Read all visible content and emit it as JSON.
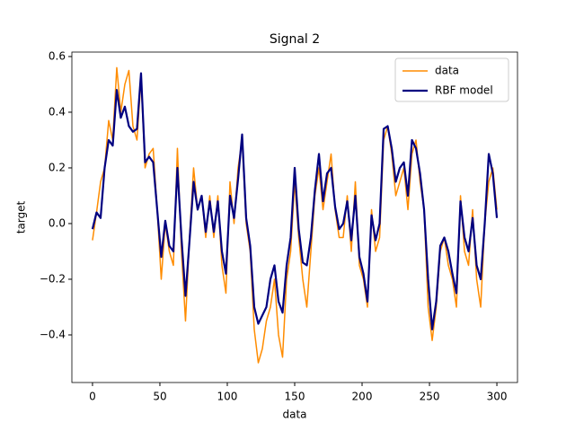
{
  "chart_data": {
    "type": "line",
    "title": "Signal 2",
    "x_label": "data",
    "y_label": "target",
    "x": [
      0,
      3,
      6,
      9,
      12,
      15,
      18,
      21,
      24,
      27,
      30,
      33,
      36,
      39,
      42,
      45,
      48,
      51,
      54,
      57,
      60,
      63,
      66,
      69,
      72,
      75,
      78,
      81,
      84,
      87,
      90,
      93,
      96,
      99,
      102,
      105,
      108,
      111,
      114,
      117,
      120,
      123,
      126,
      129,
      132,
      135,
      138,
      141,
      144,
      147,
      150,
      153,
      156,
      159,
      162,
      165,
      168,
      171,
      174,
      177,
      180,
      183,
      186,
      189,
      192,
      195,
      198,
      201,
      204,
      207,
      210,
      213,
      216,
      219,
      222,
      225,
      228,
      231,
      234,
      237,
      240,
      243,
      246,
      249,
      252,
      255,
      258,
      261,
      264,
      267,
      270,
      273,
      276,
      279,
      282,
      285,
      288,
      291,
      294,
      297,
      300
    ],
    "series": [
      {
        "name": "data",
        "color": "#ff8c00",
        "width": 1.5,
        "values": [
          -0.06,
          0.04,
          0.15,
          0.2,
          0.37,
          0.3,
          0.56,
          0.4,
          0.5,
          0.55,
          0.35,
          0.3,
          0.52,
          0.2,
          0.25,
          0.27,
          0.05,
          -0.2,
          0.0,
          -0.1,
          -0.15,
          0.27,
          -0.1,
          -0.35,
          -0.05,
          0.2,
          0.05,
          0.1,
          -0.05,
          0.1,
          -0.05,
          0.1,
          -0.15,
          -0.25,
          0.15,
          0.0,
          0.2,
          0.3,
          0.0,
          -0.1,
          -0.38,
          -0.5,
          -0.45,
          -0.35,
          -0.3,
          -0.2,
          -0.4,
          -0.48,
          -0.2,
          -0.1,
          0.15,
          -0.05,
          -0.2,
          -0.3,
          -0.1,
          0.1,
          0.2,
          0.05,
          0.15,
          0.25,
          0.05,
          -0.05,
          -0.05,
          0.1,
          -0.1,
          0.15,
          -0.15,
          -0.2,
          -0.3,
          0.05,
          -0.1,
          -0.05,
          0.3,
          0.35,
          0.25,
          0.1,
          0.15,
          0.2,
          0.05,
          0.25,
          0.3,
          0.15,
          0.05,
          -0.3,
          -0.42,
          -0.3,
          -0.1,
          -0.05,
          -0.15,
          -0.2,
          -0.3,
          0.1,
          -0.1,
          -0.15,
          0.05,
          -0.2,
          -0.3,
          0.0,
          0.15,
          0.2,
          0.05
        ]
      },
      {
        "name": "RBF model",
        "color": "#000080",
        "width": 2.2,
        "values": [
          -0.02,
          0.04,
          0.02,
          0.2,
          0.3,
          0.28,
          0.48,
          0.38,
          0.42,
          0.35,
          0.33,
          0.34,
          0.54,
          0.22,
          0.24,
          0.22,
          0.05,
          -0.12,
          0.01,
          -0.08,
          -0.1,
          0.2,
          -0.05,
          -0.26,
          -0.06,
          0.15,
          0.05,
          0.1,
          -0.03,
          0.08,
          -0.03,
          0.08,
          -0.1,
          -0.18,
          0.1,
          0.02,
          0.16,
          0.32,
          0.02,
          -0.08,
          -0.3,
          -0.36,
          -0.33,
          -0.3,
          -0.2,
          -0.15,
          -0.28,
          -0.32,
          -0.15,
          -0.05,
          0.2,
          -0.02,
          -0.14,
          -0.15,
          -0.05,
          0.12,
          0.25,
          0.08,
          0.18,
          0.2,
          0.06,
          -0.02,
          0.0,
          0.08,
          -0.06,
          0.1,
          -0.12,
          -0.18,
          -0.28,
          0.03,
          -0.06,
          0.0,
          0.34,
          0.35,
          0.27,
          0.15,
          0.2,
          0.22,
          0.1,
          0.3,
          0.27,
          0.18,
          0.05,
          -0.2,
          -0.38,
          -0.28,
          -0.08,
          -0.05,
          -0.1,
          -0.18,
          -0.25,
          0.08,
          -0.05,
          -0.1,
          0.02,
          -0.15,
          -0.2,
          0.0,
          0.25,
          0.18,
          0.02
        ]
      }
    ],
    "xlim": [
      -15.3,
      315.3
    ],
    "ylim": [
      -0.571,
      0.616
    ],
    "xticks": [
      0,
      50,
      100,
      150,
      200,
      250,
      300
    ],
    "yticks": [
      {
        "value": -0.4,
        "label": "−0.4"
      },
      {
        "value": -0.2,
        "label": "−0.2"
      },
      {
        "value": 0,
        "label": "0.0"
      },
      0.2,
      0.4,
      0.6
    ],
    "legend": "upper right"
  }
}
